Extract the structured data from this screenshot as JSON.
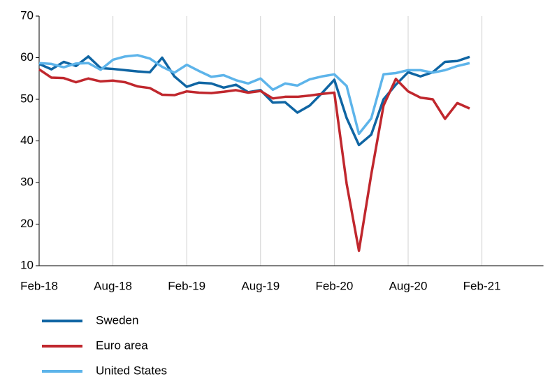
{
  "chart_data": {
    "type": "line",
    "categories": [
      "Feb-18",
      null,
      null,
      null,
      null,
      null,
      "Aug-18",
      null,
      null,
      null,
      null,
      null,
      "Feb-19",
      null,
      null,
      null,
      null,
      null,
      "Aug-19",
      null,
      null,
      null,
      null,
      null,
      "Feb-20",
      null,
      null,
      null,
      null,
      null,
      "Aug-20",
      null,
      null,
      null,
      null,
      null,
      "Feb-21",
      null,
      null,
      null,
      null,
      null
    ],
    "series": [
      {
        "name": "Sweden",
        "color": "#0f65a3",
        "values": [
          58.5,
          57.2,
          59,
          58,
          60.3,
          57.5,
          57.3,
          57,
          56.7,
          56.5,
          60,
          55.5,
          53,
          54,
          53.8,
          52.8,
          53.5,
          51.7,
          52.2,
          49.2,
          49.3,
          46.8,
          48.5,
          51.5,
          54.7,
          45.5,
          39,
          41.5,
          50,
          53.5,
          56.5,
          55.5,
          56.5,
          59,
          59.2,
          60.2,
          null,
          null,
          null,
          null,
          null,
          null
        ]
      },
      {
        "name": "Euro area",
        "color": "#c0272d",
        "values": [
          57.2,
          55.2,
          55.1,
          54.1,
          55,
          54.3,
          54.5,
          54.1,
          53.1,
          52.7,
          51.1,
          51,
          51.9,
          51.6,
          51.5,
          51.8,
          52.2,
          51.6,
          52,
          50.2,
          50.6,
          50.6,
          50.9,
          51.3,
          51.6,
          29.7,
          13.6,
          31.9,
          48.5,
          54.9,
          51.9,
          50.4,
          50,
          45.3,
          49.1,
          47.8,
          null,
          null,
          null,
          null,
          null,
          null
        ]
      },
      {
        "name": "United States",
        "color": "#5db4ea",
        "values": [
          58.7,
          58.5,
          57.7,
          58.6,
          58.7,
          57.1,
          59.5,
          60.3,
          60.6,
          59.8,
          57.8,
          56.4,
          58.3,
          56.8,
          55.4,
          55.8,
          54.6,
          53.8,
          55,
          52.3,
          53.8,
          53.3,
          54.8,
          55.5,
          56,
          53.2,
          41.7,
          45.4,
          56,
          56.3,
          57,
          57,
          56.4,
          57,
          58,
          58.7,
          null,
          null,
          null,
          null,
          null,
          null
        ]
      }
    ],
    "ylim": [
      10,
      70
    ],
    "yticks": [
      10,
      20,
      30,
      40,
      50,
      60,
      70
    ],
    "grid": true
  }
}
